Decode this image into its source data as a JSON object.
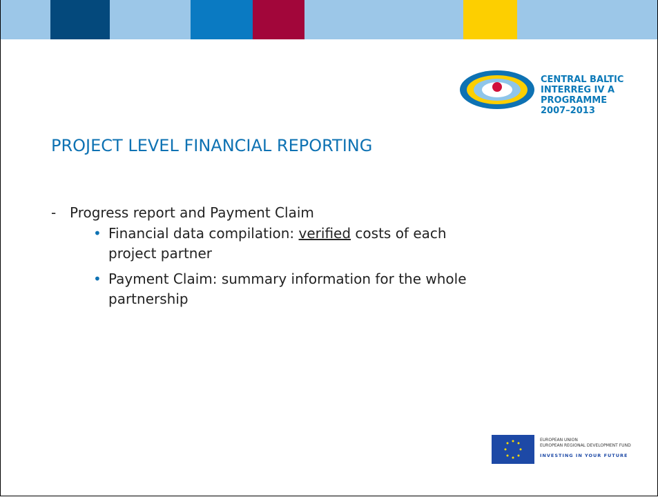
{
  "logo": {
    "lines": [
      "CENTRAL BALTIC",
      "INTERREG IV A",
      "PROGRAMME",
      "2007–2013"
    ]
  },
  "title": "PROJECT LEVEL FINANCIAL REPORTING",
  "bullets": {
    "main": "Progress report and Payment Claim",
    "sub": [
      {
        "before": "Financial data compilation: ",
        "underlined": "verified",
        "after": " costs of each project partner"
      },
      {
        "before": "Payment Claim: summary information for the whole partnership"
      }
    ]
  },
  "eu": {
    "lines": [
      "EUROPEAN UNION",
      "EUROPEAN REGIONAL DEVELOPMENT FUND"
    ],
    "slogan": "INVESTING IN YOUR FUTURE"
  }
}
